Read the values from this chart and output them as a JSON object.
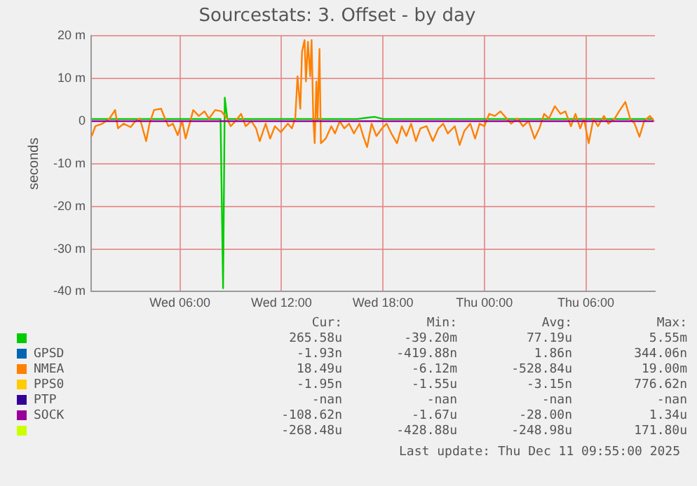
{
  "chart_data": {
    "type": "line",
    "title": "Sourcestats: 3. Offset - by day",
    "ylabel": "seconds",
    "xlim": [
      "2025-12-10T00:45",
      "2025-12-11T10:05"
    ],
    "xticks": [
      {
        "value": "2025-12-10T06:00",
        "label": "Wed 06:00"
      },
      {
        "value": "2025-12-10T12:00",
        "label": "Wed 12:00"
      },
      {
        "value": "2025-12-10T18:00",
        "label": "Wed 18:00"
      },
      {
        "value": "2025-12-11T00:00",
        "label": "Thu 00:00"
      },
      {
        "value": "2025-12-11T06:00",
        "label": "Thu 06:00"
      }
    ],
    "ylim": [
      -40,
      20
    ],
    "yticks": [
      {
        "value": 20,
        "label": "20 m"
      },
      {
        "value": 10,
        "label": "10 m"
      },
      {
        "value": 0,
        "label": "0"
      },
      {
        "value": -10,
        "label": "-10 m"
      },
      {
        "value": -20,
        "label": "-20 m"
      },
      {
        "value": -30,
        "label": "-30 m"
      },
      {
        "value": -40,
        "label": "-40 m"
      }
    ],
    "grid": true,
    "legend": "bottom",
    "marker": "none",
    "line_style": "solid",
    "series": [
      {
        "color": "#00cc00",
        "x": [
          "2025-12-10T00:47",
          "2025-12-10T08:24",
          "2025-12-10T08:33",
          "2025-12-10T08:39",
          "2025-12-10T08:48",
          "2025-12-10T16:30",
          "2025-12-10T17:06",
          "2025-12-10T17:30",
          "2025-12-10T18:00",
          "2025-12-11T10:00"
        ],
        "values": [
          0.5,
          0.5,
          -39.2,
          5.5,
          0.5,
          0.5,
          0.8,
          1.0,
          0.5,
          0.5
        ]
      },
      {
        "name": "GPSD",
        "color": "#0066b3"
      },
      {
        "name": "NMEA",
        "color": "#ff8000",
        "x": [
          "2025-12-10T00:47",
          "2025-12-10T01:00",
          "2025-12-10T01:25",
          "2025-12-10T01:50",
          "2025-12-10T02:10",
          "2025-12-10T02:20",
          "2025-12-10T02:40",
          "2025-12-10T03:05",
          "2025-12-10T03:22",
          "2025-12-10T03:38",
          "2025-12-10T04:00",
          "2025-12-10T04:12",
          "2025-12-10T04:28",
          "2025-12-10T04:53",
          "2025-12-10T05:07",
          "2025-12-10T05:19",
          "2025-12-10T05:35",
          "2025-12-10T05:52",
          "2025-12-10T06:08",
          "2025-12-10T06:20",
          "2025-12-10T06:37",
          "2025-12-10T06:47",
          "2025-12-10T07:07",
          "2025-12-10T07:27",
          "2025-12-10T07:43",
          "2025-12-10T08:05",
          "2025-12-10T08:27",
          "2025-12-10T08:47",
          "2025-12-10T09:00",
          "2025-12-10T09:17",
          "2025-12-10T09:37",
          "2025-12-10T09:53",
          "2025-12-10T10:13",
          "2025-12-10T10:30",
          "2025-12-10T10:43",
          "2025-12-10T11:04",
          "2025-12-10T11:20",
          "2025-12-10T11:37",
          "2025-12-10T11:58",
          "2025-12-10T12:23",
          "2025-12-10T12:37",
          "2025-12-10T12:49",
          "2025-12-10T12:57",
          "2025-12-10T13:07",
          "2025-12-10T13:13",
          "2025-12-10T13:22",
          "2025-12-10T13:27",
          "2025-12-10T13:34",
          "2025-12-10T13:42",
          "2025-12-10T13:47",
          "2025-12-10T13:53",
          "2025-12-10T13:58",
          "2025-12-10T14:04",
          "2025-12-10T14:08",
          "2025-12-10T14:15",
          "2025-12-10T14:20",
          "2025-12-10T14:37",
          "2025-12-10T14:57",
          "2025-12-10T15:10",
          "2025-12-10T15:27",
          "2025-12-10T15:43",
          "2025-12-10T16:00",
          "2025-12-10T16:17",
          "2025-12-10T16:37",
          "2025-12-10T16:50",
          "2025-12-10T17:04",
          "2025-12-10T17:20",
          "2025-12-10T17:37",
          "2025-12-10T17:57",
          "2025-12-10T18:13",
          "2025-12-10T18:30",
          "2025-12-10T18:50",
          "2025-12-10T19:07",
          "2025-12-10T19:23",
          "2025-12-10T19:40",
          "2025-12-10T19:57",
          "2025-12-10T20:13",
          "2025-12-10T20:35",
          "2025-12-10T20:57",
          "2025-12-10T21:17",
          "2025-12-10T21:34",
          "2025-12-10T21:50",
          "2025-12-10T22:15",
          "2025-12-10T22:32",
          "2025-12-10T22:49",
          "2025-12-10T23:10",
          "2025-12-10T23:27",
          "2025-12-10T23:43",
          "2025-12-11T00:00",
          "2025-12-11T00:17",
          "2025-12-11T00:37",
          "2025-12-11T00:57",
          "2025-12-11T01:19",
          "2025-12-11T01:35",
          "2025-12-11T01:57",
          "2025-12-11T02:17",
          "2025-12-11T02:37",
          "2025-12-11T02:58",
          "2025-12-11T03:15",
          "2025-12-11T03:32",
          "2025-12-11T03:49",
          "2025-12-11T04:10",
          "2025-12-11T04:30",
          "2025-12-11T04:47",
          "2025-12-11T05:07",
          "2025-12-11T05:23",
          "2025-12-11T05:40",
          "2025-12-11T05:53",
          "2025-12-11T06:10",
          "2025-12-11T06:27",
          "2025-12-11T06:43",
          "2025-12-11T07:04",
          "2025-12-11T07:20",
          "2025-12-11T07:42",
          "2025-12-11T07:58",
          "2025-12-11T08:20",
          "2025-12-11T08:37",
          "2025-12-11T08:53",
          "2025-12-11T09:10",
          "2025-12-11T09:27",
          "2025-12-11T09:47",
          "2025-12-11T10:00"
        ],
        "values": [
          -3.5,
          -1.2,
          -0.6,
          0.6,
          2.6,
          -1.7,
          -0.6,
          -1.4,
          0,
          0.6,
          -4.7,
          -0.6,
          2.6,
          2.9,
          0.6,
          -1.2,
          -0.6,
          -3.3,
          0,
          -4.1,
          0,
          2.6,
          1.2,
          2.3,
          0.6,
          2.6,
          2.3,
          0.6,
          -1.2,
          0,
          1.7,
          -1.2,
          0,
          -1.7,
          -4.7,
          -0.6,
          -4.1,
          -1.2,
          -2.6,
          -0.6,
          -1.7,
          0.6,
          10.5,
          2.9,
          16.3,
          19.0,
          9.3,
          18.6,
          10.5,
          19.0,
          0.6,
          -5.2,
          9.3,
          0,
          16.9,
          -5.2,
          -4.1,
          -1.2,
          -2.9,
          0,
          -1.7,
          -0.6,
          -2.9,
          -0.6,
          -3.5,
          -6.1,
          -0.6,
          -3.5,
          -1.7,
          -0.6,
          -2.9,
          -5.2,
          -1.2,
          -3.5,
          -0.6,
          -4.7,
          -1.7,
          -1.2,
          -4.7,
          -1.7,
          -0.6,
          -2.9,
          -1.2,
          -5.6,
          -2.3,
          -0.6,
          -4.1,
          -0.6,
          -1.2,
          1.7,
          1.2,
          2.3,
          0.6,
          -0.6,
          0.6,
          -1.2,
          0,
          -4.1,
          -1.7,
          1.7,
          0.6,
          3.5,
          1.7,
          2.3,
          -1.2,
          1.7,
          -1.7,
          0.6,
          -5.2,
          0.6,
          -1.2,
          1.2,
          -0.6,
          0.6,
          2.3,
          4.5,
          0.6,
          -0.6,
          -3.7,
          0,
          1.2,
          0.2
        ]
      },
      {
        "name": "PPS0",
        "color": "#ffcc00"
      },
      {
        "name": "PTP",
        "color": "#330099"
      },
      {
        "name": "SOCK",
        "color": "#990099",
        "x": [
          "2025-12-10T00:47",
          "2025-12-11T10:00"
        ],
        "values": [
          0,
          0
        ]
      },
      {
        "color": "#ccff00"
      }
    ],
    "annotations": [
      "Cur:",
      "Min:",
      "Avg:",
      "Max:",
      "265.58u",
      "-39.20m",
      "77.19u",
      "5.55m",
      "-1.93n",
      "-419.88n",
      "1.86n",
      "344.06n",
      "18.49u",
      "-6.12m",
      "-528.84u",
      "19.00m",
      "-1.95n",
      "-1.55u",
      "-3.15n",
      "776.62n",
      "-nan",
      "-nan",
      "-nan",
      "-nan",
      "-108.62n",
      "-1.67u",
      "-28.00n",
      "1.34u",
      "-268.48u",
      "-428.88u",
      "-248.98u",
      "171.80u",
      "Last update: Thu Dec 11 09:55:00 2025"
    ]
  }
}
